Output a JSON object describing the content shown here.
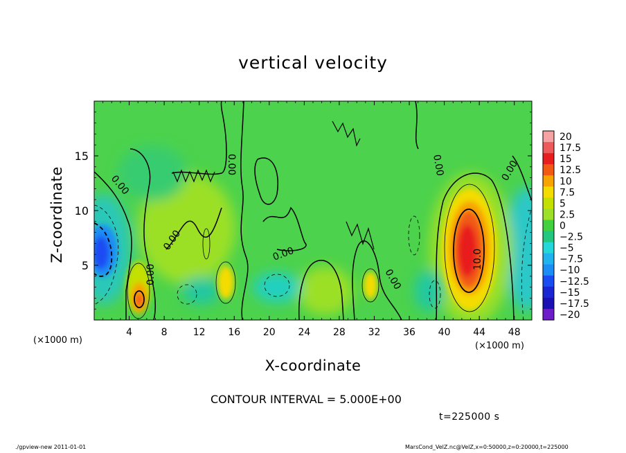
{
  "chart_data": {
    "type": "heatmap",
    "title": "vertical velocity",
    "xlabel": "X-coordinate",
    "ylabel": "Z-coordinate",
    "x_unit": "(×1000 m)",
    "x_unit_right": "(×1000 m)",
    "xlim": [
      0,
      50
    ],
    "ylim": [
      0,
      20
    ],
    "x_ticks": [
      4,
      8,
      12,
      16,
      20,
      24,
      28,
      32,
      36,
      40,
      44,
      48
    ],
    "y_ticks": [
      5,
      10,
      15
    ],
    "colorbar": {
      "labels": [
        "20",
        "17.5",
        "15",
        "12.5",
        "10",
        "7.5",
        "5",
        "2.5",
        "0",
        "−2.5",
        "−5",
        "−7.5",
        "−10",
        "−12.5",
        "−15",
        "−17.5",
        "−20"
      ],
      "colors": [
        "#f4a2a2",
        "#ee5a5a",
        "#e81e1e",
        "#f25a14",
        "#f7a400",
        "#f4dc00",
        "#c4e000",
        "#9ce028",
        "#40d040",
        "#22c880",
        "#22d8d8",
        "#20b4ee",
        "#1a8ef4",
        "#1a4cf4",
        "#1a26d4",
        "#1a10b4",
        "#6c1cc8"
      ]
    },
    "contour_interval": "5.000E+00",
    "contour_labels": [
      "0.00",
      "0.00",
      "0.00",
      "0.00",
      "0.00",
      "0.00",
      "0.00",
      "0.00",
      "10.0"
    ],
    "features": [
      {
        "name": "updraft core",
        "x": 42.5,
        "z": 6.5,
        "w": 17.5
      },
      {
        "name": "downdraft",
        "x": 1.0,
        "z": 6.5,
        "w": -12.5
      },
      {
        "name": "updraft",
        "x": 5.2,
        "z": 2.0,
        "w": 10.0
      },
      {
        "name": "updraft",
        "x": 15.0,
        "z": 3.5,
        "w": 6.0
      },
      {
        "name": "updraft",
        "x": 31.0,
        "z": 3.0,
        "w": 6.0
      }
    ]
  },
  "annotations": {
    "contour_note": "CONTOUR INTERVAL = 5.000E+00",
    "time": "t=225000 s",
    "footer_left": "./gpview-new  2011-01-01",
    "footer_right": "MarsCond_VelZ.nc@VelZ,x=0:50000,z=0:20000,t=225000"
  }
}
